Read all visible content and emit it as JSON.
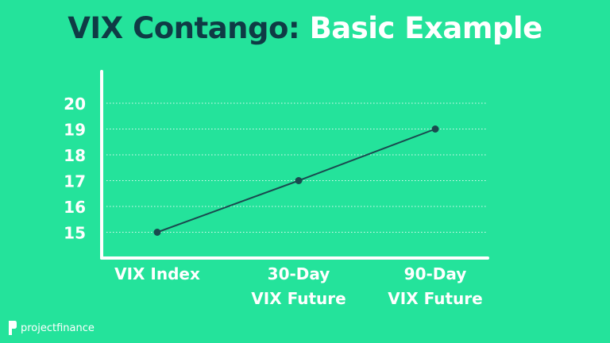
{
  "title": {
    "part1": "VIX Contango:",
    "part2": "Basic Example"
  },
  "colors": {
    "background": "#24e39b",
    "title_dark": "#0f3b45",
    "title_light": "#ffffff",
    "line": "#1a4a4f",
    "axis": "#ffffff",
    "grid": "#ffffff"
  },
  "chart_data": {
    "type": "line",
    "title": "VIX Contango: Basic Example",
    "categories": [
      [
        "VIX Index"
      ],
      [
        "30-Day",
        "VIX Future"
      ],
      [
        "90-Day",
        "VIX Future"
      ]
    ],
    "series": [
      {
        "values": [
          15,
          17,
          19
        ]
      }
    ],
    "yticks": [
      15,
      16,
      17,
      18,
      19,
      20
    ],
    "ylim": [
      14,
      21
    ],
    "grid": true,
    "grid_style": "dotted"
  },
  "logo": {
    "brand": "projectfinance"
  }
}
